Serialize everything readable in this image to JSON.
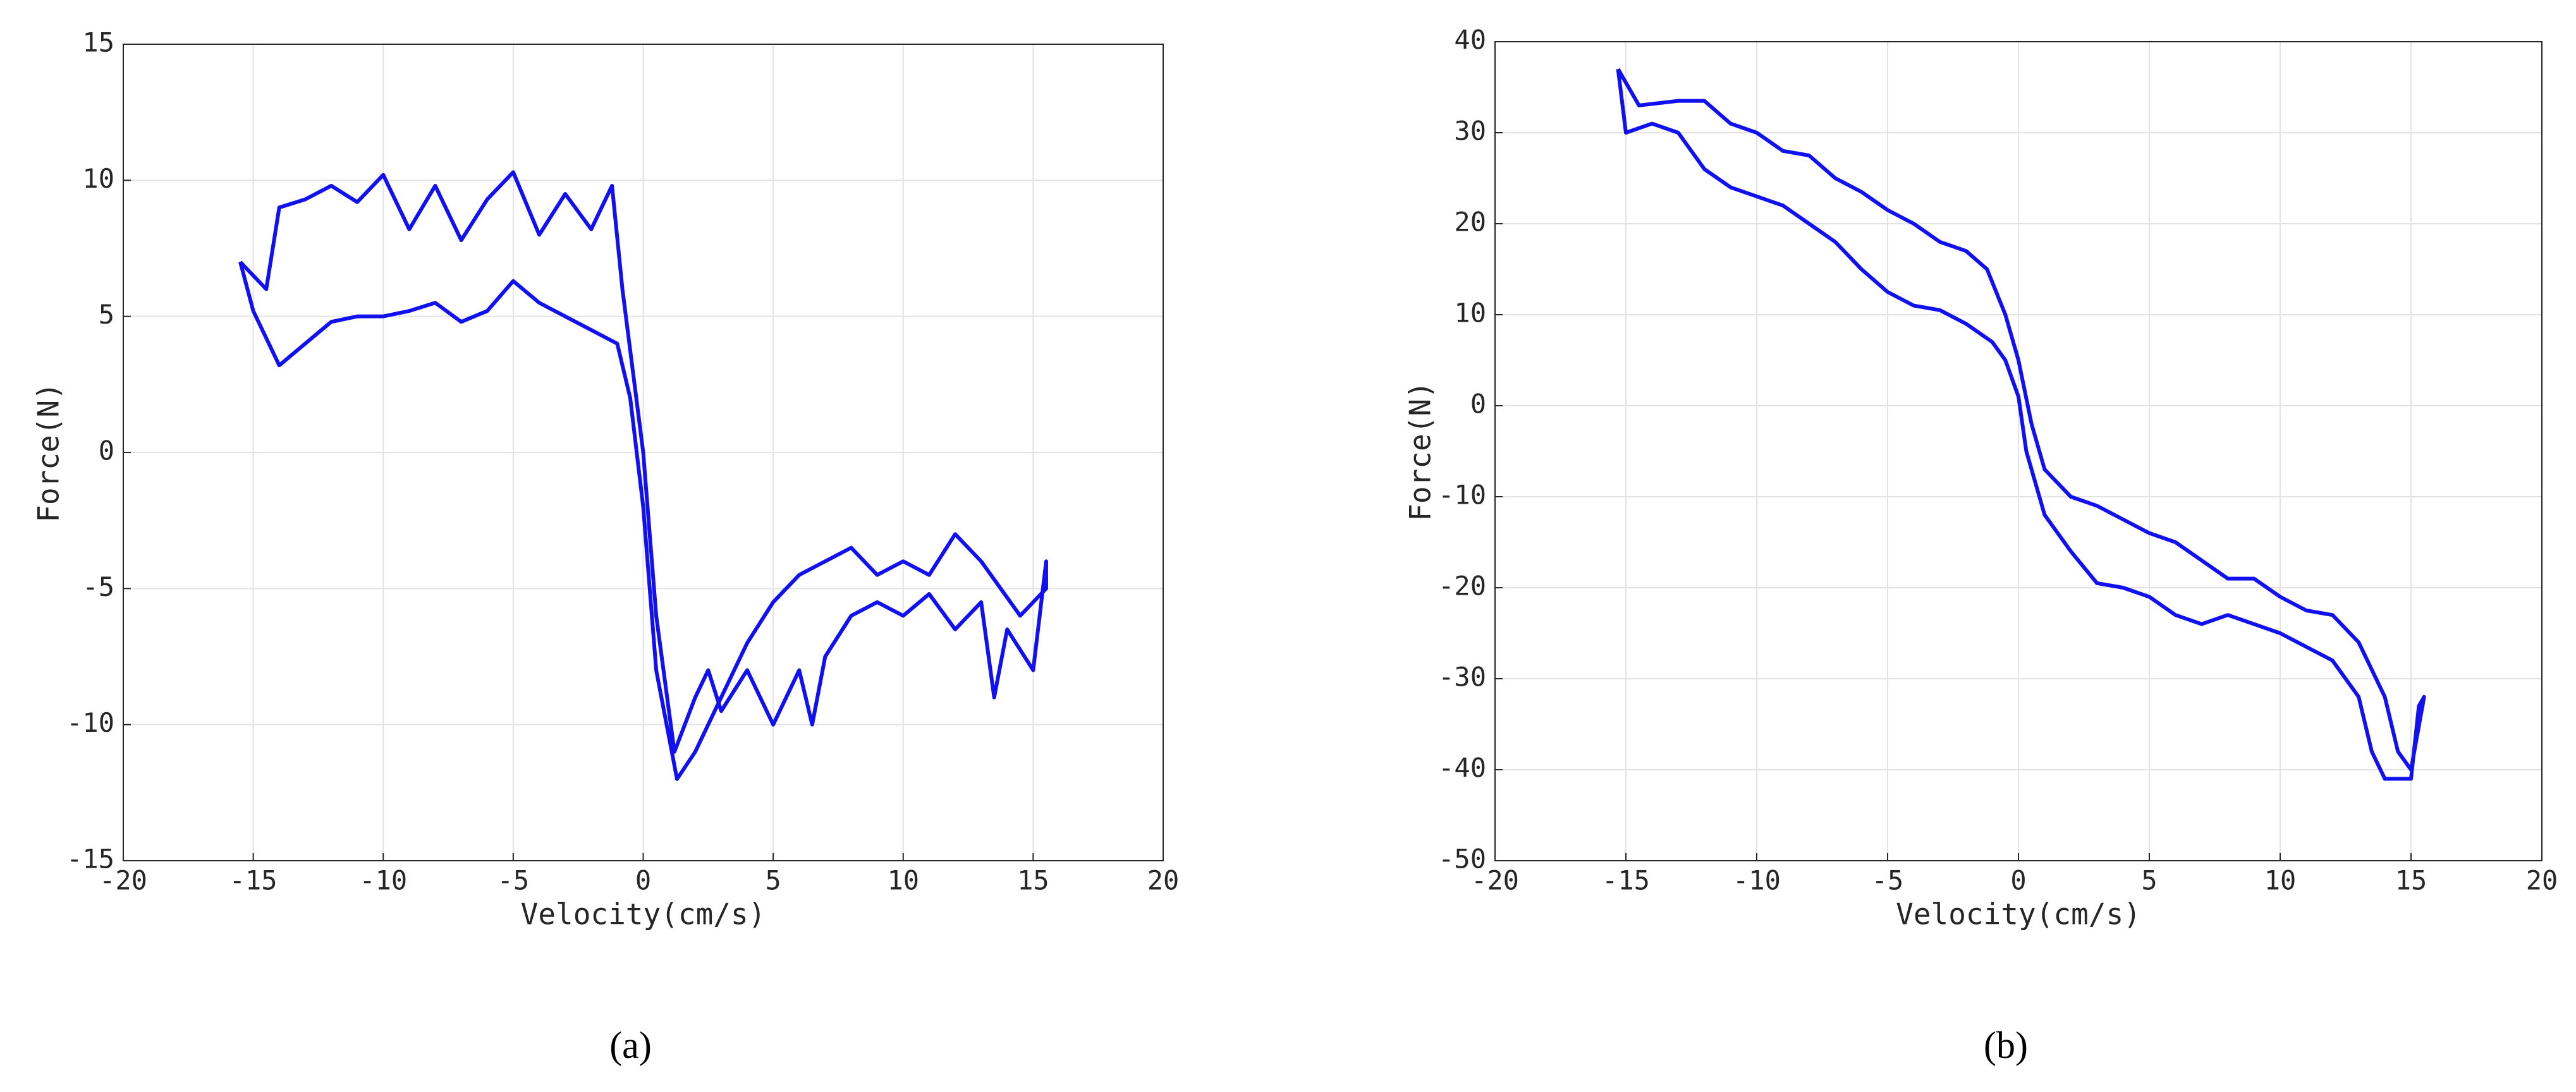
{
  "chart_data": [
    {
      "type": "line",
      "panel_label": "(a)",
      "x_label": "Velocity(cm/s)",
      "y_label": "Force(N)",
      "xlim": [
        -20,
        20
      ],
      "xticks": [
        -20,
        -15,
        -10,
        -5,
        0,
        5,
        10,
        15,
        20
      ],
      "ylim": [
        -15,
        15
      ],
      "yticks": [
        -15,
        -10,
        -5,
        0,
        5,
        10,
        15
      ],
      "grid": true,
      "series": [
        {
          "color": "#1010f0",
          "x": [
            -15.5,
            -14.5,
            -14,
            -13,
            -12,
            -11,
            -10,
            -9,
            -8,
            -7,
            -6,
            -5,
            -4,
            -3,
            -2,
            -1.2,
            -0.8,
            0,
            0.5,
            1.2,
            2,
            2.5,
            3,
            4,
            5,
            6,
            6.5,
            7,
            8,
            9,
            10,
            11,
            12,
            13,
            13.5,
            14,
            15,
            15.5,
            15.5,
            14.5,
            13,
            12,
            11,
            10,
            9,
            8,
            7,
            6,
            5,
            4,
            3,
            2,
            1.3,
            0.5,
            0,
            -0.5,
            -1,
            -2,
            -3,
            -4,
            -5,
            -6,
            -7,
            -8,
            -9,
            -10,
            -11,
            -12,
            -13,
            -14,
            -15,
            -15.5
          ],
          "values": [
            7,
            6,
            9,
            9.3,
            9.8,
            9.2,
            10.2,
            8.2,
            9.8,
            7.8,
            9.3,
            10.3,
            8,
            9.5,
            8.2,
            9.8,
            6,
            0,
            -6,
            -11,
            -9,
            -8,
            -9.5,
            -8,
            -10,
            -8,
            -10,
            -7.5,
            -6,
            -5.5,
            -6,
            -5.2,
            -6.5,
            -5.5,
            -9,
            -6.5,
            -8,
            -4,
            -5,
            -6,
            -4,
            -3,
            -4.5,
            -4,
            -4.5,
            -3.5,
            -4,
            -4.5,
            -5.5,
            -7,
            -9,
            -11,
            -12,
            -8,
            -2,
            2,
            4,
            4.5,
            5,
            5.5,
            6.3,
            5.2,
            4.8,
            5.5,
            5.2,
            5,
            5,
            4.8,
            4,
            3.2,
            5.2,
            7
          ]
        }
      ]
    },
    {
      "type": "line",
      "panel_label": "(b)",
      "x_label": "Velocity(cm/s)",
      "y_label": "Force(N)",
      "xlim": [
        -20,
        20
      ],
      "xticks": [
        -20,
        -15,
        -10,
        -5,
        0,
        5,
        10,
        15,
        20
      ],
      "ylim": [
        -50,
        40
      ],
      "yticks": [
        -50,
        -40,
        -30,
        -20,
        -10,
        0,
        10,
        20,
        30,
        40
      ],
      "grid": true,
      "series": [
        {
          "color": "#1010f0",
          "x": [
            -15.3,
            -14.5,
            -13,
            -12,
            -11,
            -10,
            -9,
            -8,
            -7,
            -6,
            -5,
            -4,
            -3,
            -2,
            -1.2,
            -0.5,
            0,
            0.5,
            1,
            2,
            3,
            4,
            5,
            6,
            7,
            8,
            9,
            10,
            11,
            12,
            13,
            14,
            14.5,
            15,
            15.5,
            15.3,
            15,
            14,
            13.5,
            13,
            12,
            11,
            10,
            9,
            8,
            7,
            6,
            5,
            4,
            3,
            2,
            1,
            0.3,
            0,
            -0.5,
            -1,
            -2,
            -3,
            -4,
            -5,
            -6,
            -7,
            -8,
            -9,
            -10,
            -11,
            -12,
            -13,
            -14,
            -15,
            -15.3
          ],
          "values": [
            37,
            33,
            33.5,
            33.5,
            31,
            30,
            28,
            27.5,
            25,
            23.5,
            21.5,
            20,
            18,
            17,
            15,
            10,
            5,
            -2,
            -7,
            -10,
            -11,
            -12.5,
            -14,
            -15,
            -17,
            -19,
            -19,
            -21,
            -22.5,
            -23,
            -26,
            -32,
            -38,
            -40,
            -32,
            -33,
            -41,
            -41,
            -38,
            -32,
            -28,
            -26.5,
            -25,
            -24,
            -23,
            -24,
            -23,
            -21,
            -20,
            -19.5,
            -16,
            -12,
            -5,
            1,
            5,
            7,
            9,
            10.5,
            11,
            12.5,
            15,
            18,
            20,
            22,
            23,
            24,
            26,
            30,
            31,
            30,
            37
          ]
        }
      ]
    }
  ]
}
